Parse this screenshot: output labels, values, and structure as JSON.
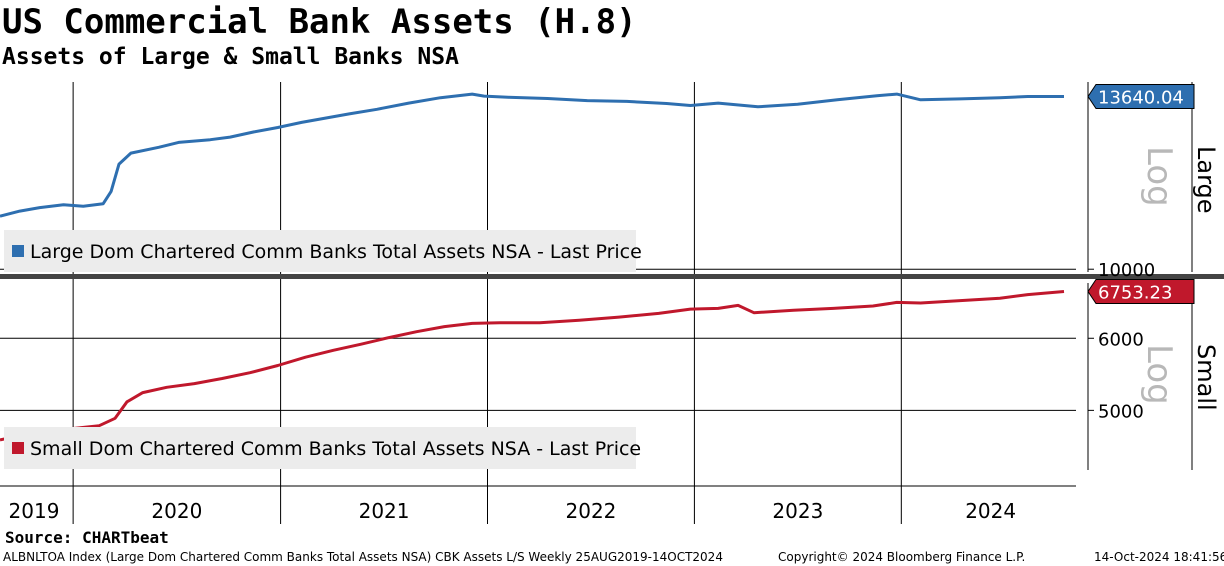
{
  "title": "US Commercial Bank Assets (H.8)",
  "subtitle": "Assets of Large & Small Banks NSA",
  "source": "Source: CHARTbeat",
  "footer": {
    "left": "ALBNLTOA Index (Large Dom Chartered Comm Banks Total Assets NSA) CBK Assets L/S  Weekly 25AUG2019-14OCT2024",
    "middle": "Copyright© 2024 Bloomberg Finance L.P.",
    "right": "14-Oct-2024 18:41:56"
  },
  "colors": {
    "large": "#2e6fb0",
    "small": "#c0182c"
  },
  "chart_data": [
    {
      "type": "line",
      "panel": "Large",
      "scale": "Log",
      "ytick_labels": [
        "10000"
      ],
      "last_price_label": "13640.04",
      "legend": "Large Dom Chartered Comm Banks Total Assets NSA - Last Price",
      "legend_position": "bottom-left",
      "x_tick_labels": [
        "2019",
        "2020",
        "2021",
        "2022",
        "2023",
        "2024"
      ],
      "x_start": "2019-08-25",
      "x_end": "2024-10-14",
      "ylim": [
        9950,
        14000
      ],
      "series": [
        {
          "name": "Large Dom Chartered Comm Banks Total Assets NSA - Last Price",
          "points": [
            [
              "2019-08-25",
              11000
            ],
            [
              "2019-09-29",
              11100
            ],
            [
              "2019-11-03",
              11170
            ],
            [
              "2019-12-15",
              11230
            ],
            [
              "2020-01-19",
              11200
            ],
            [
              "2020-02-23",
              11250
            ],
            [
              "2020-03-08",
              11500
            ],
            [
              "2020-03-22",
              12080
            ],
            [
              "2020-04-12",
              12320
            ],
            [
              "2020-05-31",
              12450
            ],
            [
              "2020-07-05",
              12560
            ],
            [
              "2020-08-30",
              12620
            ],
            [
              "2020-10-04",
              12680
            ],
            [
              "2020-11-15",
              12800
            ],
            [
              "2020-12-27",
              12900
            ],
            [
              "2021-02-07",
              13020
            ],
            [
              "2021-03-21",
              13120
            ],
            [
              "2021-05-02",
              13220
            ],
            [
              "2021-06-20",
              13330
            ],
            [
              "2021-08-15",
              13480
            ],
            [
              "2021-10-10",
              13610
            ],
            [
              "2021-12-05",
              13700
            ],
            [
              "2021-12-26",
              13650
            ],
            [
              "2022-02-06",
              13620
            ],
            [
              "2022-04-17",
              13590
            ],
            [
              "2022-06-26",
              13540
            ],
            [
              "2022-09-04",
              13520
            ],
            [
              "2022-11-13",
              13470
            ],
            [
              "2022-12-25",
              13420
            ],
            [
              "2023-02-12",
              13480
            ],
            [
              "2023-04-23",
              13390
            ],
            [
              "2023-07-02",
              13450
            ],
            [
              "2023-09-10",
              13560
            ],
            [
              "2023-11-19",
              13660
            ],
            [
              "2023-12-24",
              13700
            ],
            [
              "2024-02-04",
              13560
            ],
            [
              "2024-04-14",
              13580
            ],
            [
              "2024-06-23",
              13610
            ],
            [
              "2024-08-11",
              13640
            ],
            [
              "2024-10-14",
              13640.04
            ]
          ]
        }
      ]
    },
    {
      "type": "line",
      "panel": "Small",
      "scale": "Log",
      "ytick_labels": [
        "5000",
        "6000"
      ],
      "last_price_label": "6753.23",
      "legend": "Small Dom Chartered Comm Banks Total Assets NSA - Last Price",
      "legend_position": "bottom-left",
      "ylim": [
        4300,
        6900
      ],
      "series": [
        {
          "name": "Small Dom Chartered Comm Banks Total Assets NSA - Last Price",
          "points": [
            [
              "2019-08-25",
              4640
            ],
            [
              "2019-10-06",
              4700
            ],
            [
              "2019-11-24",
              4760
            ],
            [
              "2020-01-05",
              4780
            ],
            [
              "2020-02-16",
              4810
            ],
            [
              "2020-03-15",
              4900
            ],
            [
              "2020-04-05",
              5110
            ],
            [
              "2020-05-03",
              5230
            ],
            [
              "2020-06-14",
              5300
            ],
            [
              "2020-08-02",
              5350
            ],
            [
              "2020-09-20",
              5420
            ],
            [
              "2020-11-08",
              5500
            ],
            [
              "2020-12-27",
              5600
            ],
            [
              "2021-02-14",
              5720
            ],
            [
              "2021-04-04",
              5820
            ],
            [
              "2021-05-23",
              5910
            ],
            [
              "2021-07-11",
              6010
            ],
            [
              "2021-08-29",
              6100
            ],
            [
              "2021-10-17",
              6180
            ],
            [
              "2021-12-05",
              6230
            ],
            [
              "2022-01-23",
              6240
            ],
            [
              "2022-04-03",
              6240
            ],
            [
              "2022-06-12",
              6280
            ],
            [
              "2022-08-21",
              6330
            ],
            [
              "2022-10-30",
              6390
            ],
            [
              "2022-12-25",
              6460
            ],
            [
              "2023-02-12",
              6470
            ],
            [
              "2023-03-19",
              6520
            ],
            [
              "2023-04-16",
              6400
            ],
            [
              "2023-06-25",
              6440
            ],
            [
              "2023-09-03",
              6470
            ],
            [
              "2023-11-12",
              6510
            ],
            [
              "2023-12-24",
              6570
            ],
            [
              "2024-02-04",
              6560
            ],
            [
              "2024-04-14",
              6600
            ],
            [
              "2024-06-23",
              6640
            ],
            [
              "2024-08-11",
              6700
            ],
            [
              "2024-10-14",
              6753.23
            ]
          ]
        }
      ]
    }
  ]
}
